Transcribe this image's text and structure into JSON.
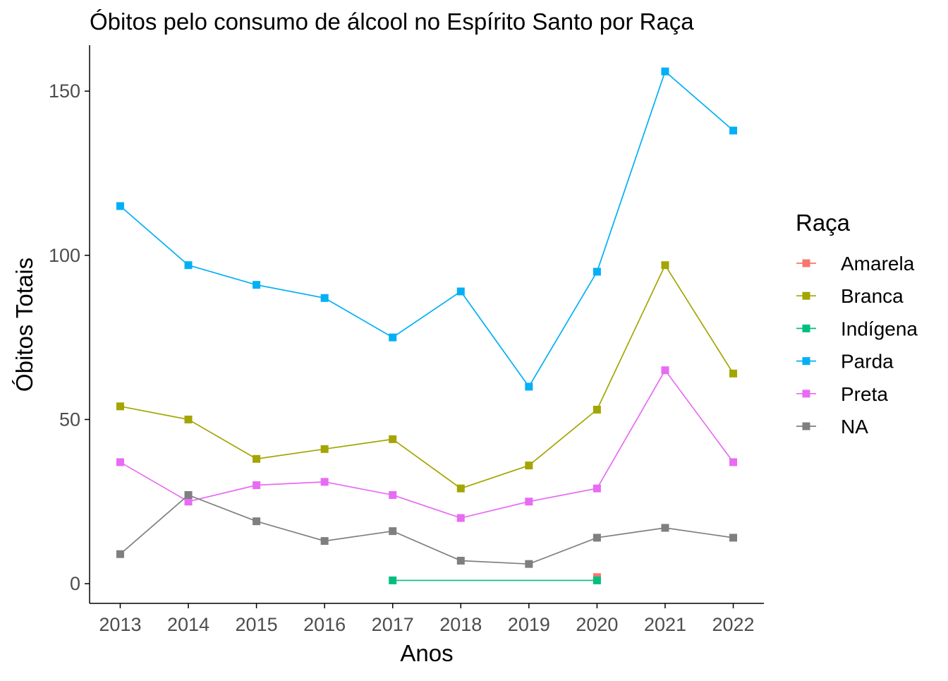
{
  "chart_data": {
    "type": "line",
    "title": "Óbitos pelo consumo de álcool no Espírito Santo por Raça",
    "xlabel": "Anos",
    "ylabel": "Óbitos Totais",
    "x": [
      2013,
      2014,
      2015,
      2016,
      2017,
      2018,
      2019,
      2020,
      2021,
      2022
    ],
    "ylim": [
      -6,
      164
    ],
    "yticks": [
      0,
      50,
      100,
      150
    ],
    "grid": false,
    "legend": {
      "title": "Raça",
      "position": "right"
    },
    "series": [
      {
        "name": "Amarela",
        "color": "#F8766D",
        "values": [
          null,
          null,
          null,
          null,
          null,
          null,
          null,
          2,
          null,
          null
        ]
      },
      {
        "name": "Branca",
        "color": "#A3A500",
        "values": [
          54,
          50,
          38,
          41,
          44,
          29,
          36,
          53,
          97,
          64
        ]
      },
      {
        "name": "Indígena",
        "color": "#00BF7D",
        "values": [
          null,
          null,
          null,
          null,
          1,
          null,
          null,
          1,
          null,
          null
        ]
      },
      {
        "name": "Parda",
        "color": "#00B0F6",
        "values": [
          115,
          97,
          91,
          87,
          75,
          89,
          60,
          95,
          156,
          138
        ]
      },
      {
        "name": "Preta",
        "color": "#E76BF3",
        "values": [
          37,
          25,
          30,
          31,
          27,
          20,
          25,
          29,
          65,
          37
        ]
      },
      {
        "name": "NA",
        "color": "#7F7F7F",
        "values": [
          9,
          27,
          19,
          13,
          16,
          7,
          6,
          14,
          17,
          14
        ]
      }
    ]
  }
}
